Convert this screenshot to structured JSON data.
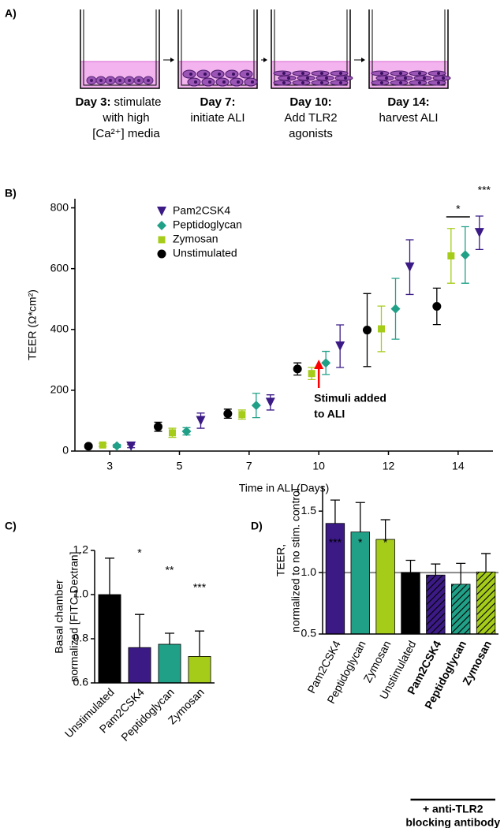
{
  "panel_labels": [
    "A)",
    "B)",
    "C)",
    "D)"
  ],
  "diagram": {
    "steps": [
      {
        "day": "Day 3:",
        "lines": [
          "stimulate",
          "with high",
          "[Ca²⁺] media"
        ]
      },
      {
        "day": "Day 7:",
        "lines": [
          "initiate ALI"
        ]
      },
      {
        "day": "Day 10:",
        "lines": [
          "Add TLR2",
          "agonists"
        ]
      },
      {
        "day": "Day 14:",
        "lines": [
          "harvest ALI"
        ]
      }
    ]
  },
  "chart_data": [
    {
      "type": "scatter",
      "xlabel": "Time in ALI (Days)",
      "ylabel": "TEER (Ω*cm²)",
      "categories": [
        3,
        5,
        7,
        10,
        12,
        14
      ],
      "ylim": [
        0,
        830
      ],
      "yticks": [
        0,
        200,
        400,
        600,
        800
      ],
      "legend": "upper left",
      "series": [
        {
          "name": "Pam2CSK4",
          "color": "#3b1a86",
          "marker": "triangle-down",
          "values": [
            16,
            100,
            160,
            345,
            605,
            718
          ],
          "errors": [
            5,
            25,
            25,
            70,
            90,
            55
          ]
        },
        {
          "name": "Peptidoglycan",
          "color": "#21a088",
          "marker": "diamond",
          "values": [
            17,
            65,
            150,
            290,
            468,
            645
          ],
          "errors": [
            5,
            12,
            40,
            38,
            100,
            93
          ]
        },
        {
          "name": "Zymosan",
          "color": "#a6cc1a",
          "marker": "square",
          "values": [
            20,
            60,
            120,
            255,
            402,
            642
          ],
          "errors": [
            5,
            15,
            15,
            20,
            75,
            90
          ]
        },
        {
          "name": "Unstimulated",
          "color": "#000000",
          "marker": "circle",
          "values": [
            16,
            80,
            123,
            270,
            398,
            476
          ],
          "errors": [
            5,
            15,
            15,
            20,
            120,
            60
          ]
        }
      ],
      "significance": [
        "*",
        "***"
      ],
      "callout": [
        "Stimuli added",
        "to ALI"
      ]
    },
    {
      "type": "bar",
      "ylabel": [
        "Basal chamber",
        "normalized [FITC-Dextran]"
      ],
      "categories": [
        "Unstimulated",
        "Pam2CSK4",
        "Peptidoglycan",
        "Zymosan"
      ],
      "values": [
        1.0,
        0.76,
        0.775,
        0.72
      ],
      "errors": [
        0.165,
        0.15,
        0.05,
        0.115
      ],
      "colors": [
        "#000000",
        "#3b1a86",
        "#21a088",
        "#a6cc1a"
      ],
      "ylim": [
        0.6,
        1.2
      ],
      "yticks": [
        0.6,
        0.8,
        {
          "value": 1,
          "label": "1.0"
        },
        1.2
      ],
      "significance": [
        null,
        "*",
        "**",
        "***"
      ]
    },
    {
      "type": "bar",
      "ylabel": [
        "TEER,",
        "normalized to no stim. control"
      ],
      "categories": [
        "Pam2CSK4",
        "Peptidoglycan",
        "Zymosan",
        "Unstimulated",
        "Pam2CSK4",
        "Peptidoglycan",
        "Zymosan"
      ],
      "values": [
        1.4,
        1.33,
        1.27,
        1.0,
        0.98,
        0.905,
        1.005
      ],
      "errors": [
        0.19,
        0.24,
        0.16,
        0.1,
        0.09,
        0.17,
        0.15
      ],
      "colors": [
        "#3b1a86",
        "#21a088",
        "#a6cc1a",
        "#000000",
        "#3b1a86",
        "#21a088",
        "#a6cc1a"
      ],
      "hatched": [
        false,
        false,
        false,
        false,
        true,
        true,
        true
      ],
      "label_bold": [
        false,
        false,
        false,
        false,
        true,
        true,
        true
      ],
      "reference_line": 1,
      "ylim": [
        0.5,
        1.7
      ],
      "yticks": [
        0.5,
        {
          "value": 1,
          "label": "1.0"
        },
        1.5
      ],
      "significance": [
        "***",
        "*",
        "*",
        null,
        null,
        null,
        null
      ],
      "group_label": [
        "+ anti-TLR2",
        "blocking antibody"
      ]
    }
  ]
}
